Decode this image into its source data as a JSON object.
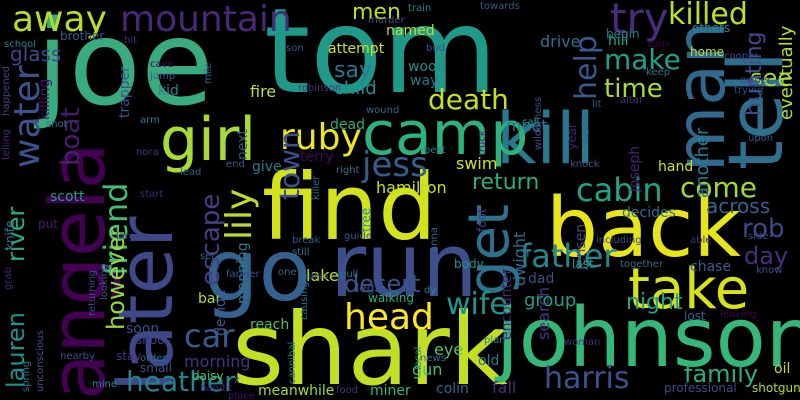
{
  "words": [
    {
      "text": "joe",
      "color": "#3aab7e"
    },
    {
      "text": "tom",
      "color": "#1f9a8a"
    },
    {
      "text": "find",
      "color": "#d2e21b"
    },
    {
      "text": "shark",
      "color": "#c2df23"
    },
    {
      "text": "johnson",
      "color": "#35b779"
    },
    {
      "text": "back",
      "color": "#e7e419"
    },
    {
      "text": "go",
      "color": "#34618d"
    },
    {
      "text": "run",
      "color": "#3c4f8a"
    },
    {
      "text": "angela",
      "color": "#440154"
    },
    {
      "text": "later",
      "color": "#3e4989"
    },
    {
      "text": "man",
      "color": "#31688e"
    },
    {
      "text": "tell",
      "color": "#2e6f8e"
    },
    {
      "text": "kill",
      "color": "#2a788e"
    },
    {
      "text": "camp",
      "color": "#2db27d"
    },
    {
      "text": "take",
      "color": "#d8e219"
    },
    {
      "text": "girl",
      "color": "#a8db34"
    },
    {
      "text": "get",
      "color": "#2c728e"
    },
    {
      "text": "mountain",
      "color": "#482878"
    },
    {
      "text": "try",
      "color": "#472d7b"
    },
    {
      "text": "killed",
      "color": "#bddf26"
    },
    {
      "text": "men",
      "color": "#bade28"
    },
    {
      "text": "death",
      "color": "#c5e021"
    },
    {
      "text": "away",
      "color": "#b5de2b"
    },
    {
      "text": "glass",
      "color": "#3f4889"
    },
    {
      "text": "boat",
      "color": "#481d6f"
    },
    {
      "text": "water",
      "color": "#3b528b"
    },
    {
      "text": "friend",
      "color": "#42be71"
    },
    {
      "text": "however",
      "color": "#90d743"
    },
    {
      "text": "lauren",
      "color": "#21918c"
    },
    {
      "text": "river",
      "color": "#25ac82"
    },
    {
      "text": "ruby",
      "color": "#efe51c"
    },
    {
      "text": "town",
      "color": "#3c508b"
    },
    {
      "text": "jess",
      "color": "#355e8d"
    },
    {
      "text": "lily",
      "color": "#bade28"
    },
    {
      "text": "escape",
      "color": "#433e85"
    },
    {
      "text": "car",
      "color": "#365c8d"
    },
    {
      "text": "heather",
      "color": "#26828e"
    },
    {
      "text": "head",
      "color": "#fde725"
    },
    {
      "text": "desert",
      "color": "#3a538b"
    },
    {
      "text": "wife",
      "color": "#1f948c"
    },
    {
      "text": "father",
      "color": "#24868e"
    },
    {
      "text": "return",
      "color": "#2ab07f"
    },
    {
      "text": "cabin",
      "color": "#20a486"
    },
    {
      "text": "come",
      "color": "#a0da39"
    },
    {
      "text": "rob",
      "color": "#3e4989"
    },
    {
      "text": "day",
      "color": "#462f7c"
    },
    {
      "text": "across",
      "color": "#34618d"
    },
    {
      "text": "harris",
      "color": "#3b528b"
    },
    {
      "text": "family",
      "color": "#29af7f"
    },
    {
      "text": "group",
      "color": "#1fa187"
    },
    {
      "text": "night",
      "color": "#21a685"
    },
    {
      "text": "see",
      "color": "#a2da37"
    },
    {
      "text": "make",
      "color": "#1fa088"
    },
    {
      "text": "time",
      "color": "#a8db34"
    },
    {
      "text": "help",
      "color": "#38598c"
    },
    {
      "text": "say",
      "color": "#2a778e"
    },
    {
      "text": "child",
      "color": "#228c8d"
    },
    {
      "text": "attempt",
      "color": "#d0e11c"
    },
    {
      "text": "named",
      "color": "#bfdf25"
    },
    {
      "text": "drive",
      "color": "#2d718e"
    },
    {
      "text": "hill",
      "color": "#24aa83"
    },
    {
      "text": "encounter",
      "color": "#482576"
    },
    {
      "text": "search",
      "color": "#453781"
    },
    {
      "text": "jensen",
      "color": "#404588"
    },
    {
      "text": "joseph",
      "color": "#482374"
    },
    {
      "text": "hunting",
      "color": "#3e4c8a"
    },
    {
      "text": "eventually",
      "color": "#b0dd2f"
    },
    {
      "text": "another",
      "color": "#277f8e"
    },
    {
      "text": "hand",
      "color": "#cde11d"
    },
    {
      "text": "swim",
      "color": "#d2e21b"
    },
    {
      "text": "meet",
      "color": "#2a778e"
    },
    {
      "text": "dad",
      "color": "#3c4f8a"
    },
    {
      "text": "eye",
      "color": "#54c568"
    },
    {
      "text": "old",
      "color": "#297b8e"
    },
    {
      "text": "colin",
      "color": "#30688e"
    },
    {
      "text": "fall",
      "color": "#472c7a"
    },
    {
      "text": "gun",
      "color": "#44bf70"
    },
    {
      "text": "miner",
      "color": "#31b57b"
    },
    {
      "text": "meanwhile",
      "color": "#a2da37"
    },
    {
      "text": "morning",
      "color": "#46337f"
    },
    {
      "text": "reach",
      "color": "#4ac16d"
    },
    {
      "text": "bar",
      "color": "#b2dd2d"
    },
    {
      "text": "lake",
      "color": "#bddf26"
    },
    {
      "text": "decides",
      "color": "#2e6f8e"
    },
    {
      "text": "manning",
      "color": "#29798e"
    },
    {
      "text": "decide",
      "color": "#38598c"
    },
    {
      "text": "hamilton",
      "color": "#c8e020"
    },
    {
      "text": "terry",
      "color": "#46085c"
    },
    {
      "text": "next",
      "color": "#39558c"
    },
    {
      "text": "give",
      "color": "#277f8e"
    },
    {
      "text": "dead",
      "color": "#26ad81"
    },
    {
      "text": "wood",
      "color": "#238a8d"
    },
    {
      "text": "way",
      "color": "#2c738e"
    },
    {
      "text": "fire",
      "color": "#bddf26"
    },
    {
      "text": "kid",
      "color": "#25848e"
    },
    {
      "text": "trapper",
      "color": "#3a548c"
    },
    {
      "text": "dwight",
      "color": "#2e6e8e"
    },
    {
      "text": "scott",
      "color": "#1f9e89"
    },
    {
      "text": "killing",
      "color": "#471365"
    },
    {
      "text": "oil",
      "color": "#b5de2b"
    },
    {
      "text": "chase",
      "color": "#375b8d"
    },
    {
      "text": "home",
      "color": "#b5de2b"
    },
    {
      "text": "others",
      "color": "#23898e"
    },
    {
      "text": "begin",
      "color": "#29798e"
    },
    {
      "text": "year",
      "color": "#482173"
    },
    {
      "text": "foot",
      "color": "#433d84"
    },
    {
      "text": "body",
      "color": "#20928c"
    },
    {
      "text": "last",
      "color": "#1f9e89"
    },
    {
      "text": "lost",
      "color": "#31688e"
    },
    {
      "text": "brother",
      "color": "#38588c"
    },
    {
      "text": "school",
      "color": "#25858e"
    },
    {
      "text": "happened",
      "color": "#3f4788"
    },
    {
      "text": "telling",
      "color": "#482878"
    },
    {
      "text": "shot",
      "color": "#2c738e"
    },
    {
      "text": "knife",
      "color": "#2b758e"
    },
    {
      "text": "put",
      "color": "#481b6d"
    },
    {
      "text": "large",
      "color": "#404588"
    },
    {
      "text": "soon",
      "color": "#3c4f8a"
    },
    {
      "text": "shoot",
      "color": "#433e85"
    },
    {
      "text": "small",
      "color": "#3a538b"
    },
    {
      "text": "stay",
      "color": "#46327e"
    },
    {
      "text": "order",
      "color": "#2d718e"
    },
    {
      "text": "nearby",
      "color": "#3a548c"
    },
    {
      "text": "spring",
      "color": "#2b748e"
    },
    {
      "text": "unconscious",
      "color": "#3b528b"
    },
    {
      "text": "mine",
      "color": "#228c8d"
    },
    {
      "text": "daisy",
      "color": "#4ac16d"
    },
    {
      "text": "place",
      "color": "#471365"
    },
    {
      "text": "food",
      "color": "#46337f"
    },
    {
      "text": "news",
      "color": "#30698e"
    },
    {
      "text": "plan",
      "color": "#277f8e"
    },
    {
      "text": "local",
      "color": "#1f948c"
    },
    {
      "text": "cannibal",
      "color": "#297b8e"
    },
    {
      "text": "walking",
      "color": "#2ab07f"
    },
    {
      "text": "leg",
      "color": "#3b528b"
    },
    {
      "text": "bandit",
      "color": "#482071"
    },
    {
      "text": "farmer",
      "color": "#39558c"
    },
    {
      "text": "woman",
      "color": "#472d7b"
    },
    {
      "text": "professional",
      "color": "#3e4989"
    },
    {
      "text": "shotgun",
      "color": "#b2dd2d"
    },
    {
      "text": "leaving",
      "color": "#440154"
    },
    {
      "text": "able",
      "color": "#462f7c"
    },
    {
      "text": "know",
      "color": "#3b528b"
    },
    {
      "text": "side",
      "color": "#3f4889"
    },
    {
      "text": "together",
      "color": "#2e6e8e"
    },
    {
      "text": "including",
      "color": "#3e4a89"
    },
    {
      "text": "knock",
      "color": "#3a538b"
    },
    {
      "text": "guide",
      "color": "#38588c"
    },
    {
      "text": "tree",
      "color": "#1f958b"
    },
    {
      "text": "anna",
      "color": "#30688e"
    },
    {
      "text": "pull",
      "color": "#2a768e"
    },
    {
      "text": "dy",
      "color": "#26828e"
    },
    {
      "text": "also",
      "color": "#3f4788"
    },
    {
      "text": "one",
      "color": "#31688e"
    },
    {
      "text": "still",
      "color": "#2d708e"
    },
    {
      "text": "break",
      "color": "#39568c"
    },
    {
      "text": "killer",
      "color": "#2f6c8e"
    },
    {
      "text": "right",
      "color": "#2c738e"
    },
    {
      "text": "set",
      "color": "#33628d"
    },
    {
      "text": "end",
      "color": "#375b8d"
    },
    {
      "text": "start",
      "color": "#482576"
    },
    {
      "text": "best",
      "color": "#2b758e"
    },
    {
      "text": "call",
      "color": "#1fa088"
    },
    {
      "text": "truck",
      "color": "#481d6f"
    },
    {
      "text": "wound",
      "color": "#31688e"
    },
    {
      "text": "nora",
      "color": "#472c7a"
    },
    {
      "text": "arm",
      "color": "#2a768e"
    },
    {
      "text": "cave",
      "color": "#440154"
    },
    {
      "text": "jump",
      "color": "#3a548c"
    },
    {
      "text": "mile",
      "color": "#31688e"
    },
    {
      "text": "son",
      "color": "#39568c"
    },
    {
      "text": "bud",
      "color": "#3c508b"
    },
    {
      "text": "robinson",
      "color": "#46327e"
    },
    {
      "text": "train",
      "color": "#26828e"
    },
    {
      "text": "towards",
      "color": "#39568c"
    },
    {
      "text": "murder",
      "color": "#3c4f8a"
    },
    {
      "text": "hit",
      "color": "#46337f"
    },
    {
      "text": "turn",
      "color": "#440154"
    },
    {
      "text": "cooper",
      "color": "#3e4989"
    },
    {
      "text": "keep",
      "color": "#2c738e"
    },
    {
      "text": "owner",
      "color": "#3f4788"
    },
    {
      "text": "trying",
      "color": "#3e4a89"
    },
    {
      "text": "upon",
      "color": "#38588c"
    },
    {
      "text": "altar",
      "color": "#46327e"
    },
    {
      "text": "open",
      "color": "#31688e"
    },
    {
      "text": "wilderness",
      "color": "#3b528b"
    },
    {
      "text": "lit",
      "color": "#33628d"
    },
    {
      "text": "grab",
      "color": "#482576"
    },
    {
      "text": "returning",
      "color": "#3e4989"
    },
    {
      "text": "looking",
      "color": "#39568c"
    },
    {
      "text": "causing",
      "color": "#2d708e"
    },
    {
      "text": "x",
      "color": "#3a548c"
    },
    {
      "text": "lead",
      "color": "#38588c"
    }
  ]
}
